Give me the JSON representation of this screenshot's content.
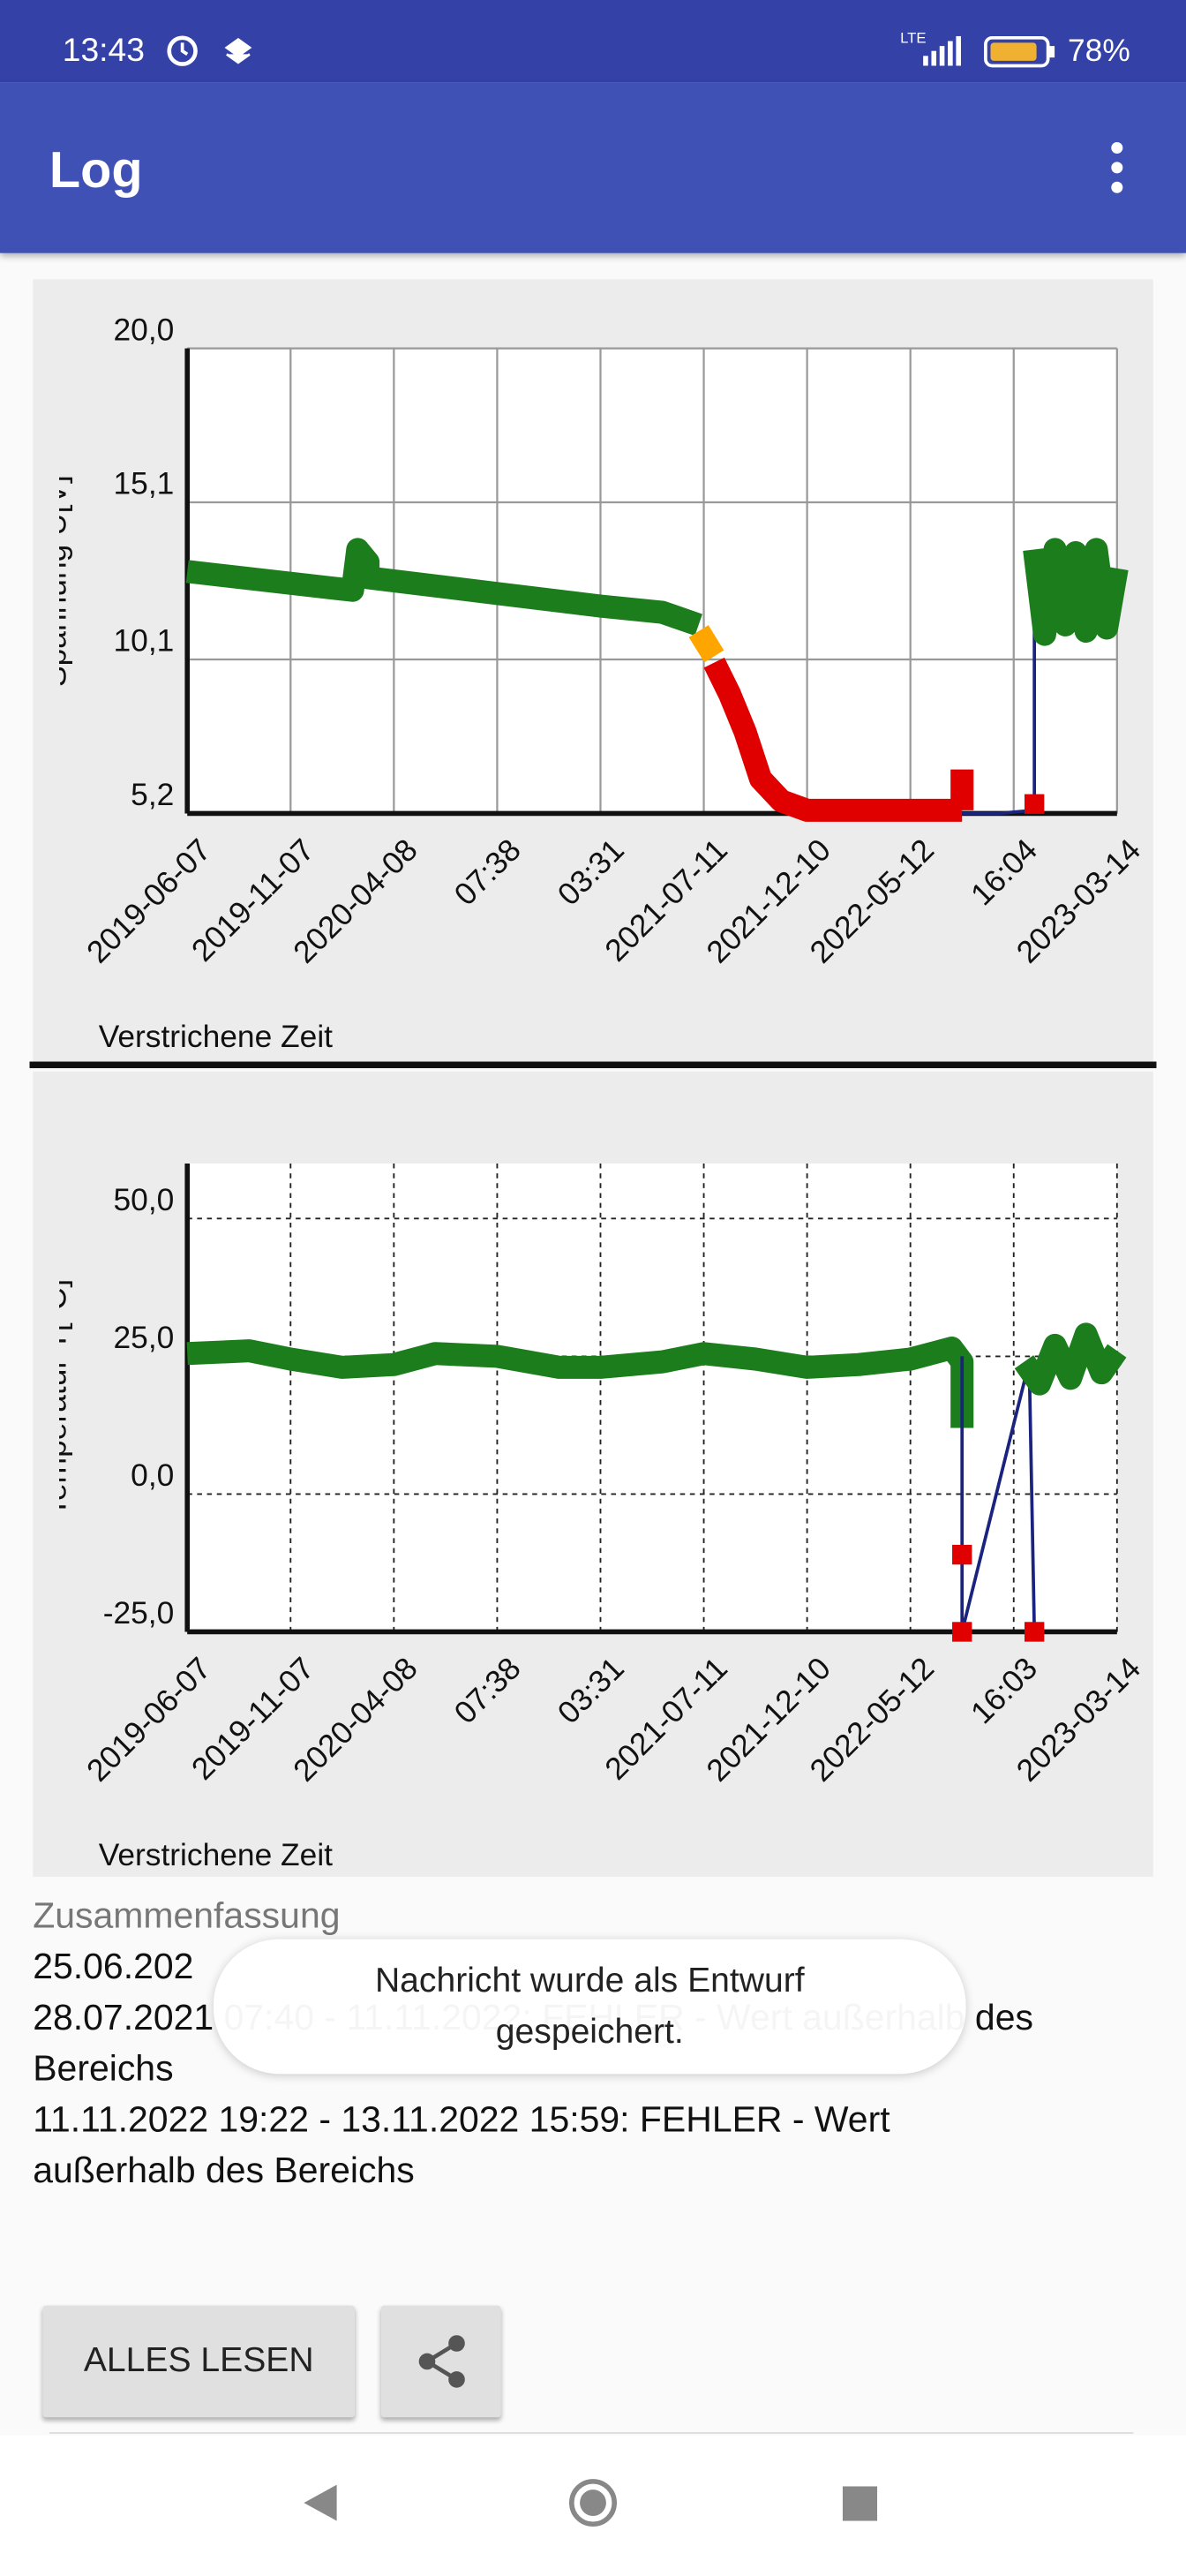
{
  "status_bar": {
    "time": "13:43",
    "network": "LTE",
    "battery": "78%"
  },
  "app_bar": {
    "title": "Log"
  },
  "chart_data": [
    {
      "type": "line",
      "y_label": "Spannung U[V]",
      "x_label": "Verstrichene Zeit",
      "grid": "solid",
      "xlim": [
        0,
        9
      ],
      "xticks": [
        {
          "value": 0,
          "label": "2019-06-07"
        },
        {
          "value": 1,
          "label": "2019-11-07"
        },
        {
          "value": 2,
          "label": "2020-04-08"
        },
        {
          "value": 3,
          "label": "07:38"
        },
        {
          "value": 4,
          "label": "03:31"
        },
        {
          "value": 5,
          "label": "2021-07-11"
        },
        {
          "value": 6,
          "label": "2021-12-10"
        },
        {
          "value": 7,
          "label": "2022-05-12"
        },
        {
          "value": 8,
          "label": "16:04"
        },
        {
          "value": 9,
          "label": "2023-03-14"
        }
      ],
      "ylim": [
        5.2,
        20.0
      ],
      "yticks": [
        {
          "value": 5.2,
          "label": "5,2"
        },
        {
          "value": 10.1,
          "label": "10,1"
        },
        {
          "value": 15.1,
          "label": "15,1"
        },
        {
          "value": 20.0,
          "label": "20,0"
        }
      ],
      "series": [
        {
          "color": "#1b7d1b",
          "mode": "line",
          "style": "thick",
          "x": [
            0,
            1.6,
            1.65,
            1.75,
            1.75,
            3.0,
            4.0,
            4.6,
            4.95
          ],
          "values": [
            12.9,
            12.3,
            13.6,
            13.2,
            12.7,
            12.2,
            11.8,
            11.6,
            11.2
          ]
        },
        {
          "color": "#ffa500",
          "mode": "line",
          "style": "thick",
          "x": [
            4.95,
            5.1
          ],
          "values": [
            11.0,
            10.2
          ]
        },
        {
          "color": "#e00000",
          "mode": "line",
          "style": "thick",
          "x": [
            5.1,
            5.25,
            5.4,
            5.55,
            5.75,
            6.0,
            7.5
          ],
          "values": [
            10.0,
            9.0,
            7.8,
            6.3,
            5.6,
            5.3,
            5.3
          ]
        },
        {
          "color": "#e00000",
          "mode": "line",
          "style": "thick",
          "x": [
            7.5,
            7.5
          ],
          "values": [
            5.3,
            6.6
          ]
        },
        {
          "color": "#1a237e",
          "mode": "line",
          "style": "thin",
          "x": [
            7.5,
            7.85,
            8.2,
            8.2
          ],
          "values": [
            5.2,
            5.2,
            5.3,
            13.5
          ]
        },
        {
          "color": "#e00000",
          "mode": "markers",
          "x": [
            8.2
          ],
          "values": [
            5.5
          ]
        },
        {
          "color": "#1b7d1b",
          "mode": "line",
          "style": "thick",
          "x": [
            8.2,
            8.3,
            8.4,
            8.5,
            8.6,
            8.7,
            8.8,
            8.9,
            9.0
          ],
          "values": [
            13.6,
            10.9,
            13.6,
            11.2,
            13.5,
            11.0,
            13.6,
            11.1,
            13.0
          ]
        }
      ]
    },
    {
      "type": "line",
      "y_label": "Temperatur T[°C]",
      "x_label": "Verstrichene Zeit",
      "grid": "dashed",
      "xlim": [
        0,
        9
      ],
      "xticks": [
        {
          "value": 0,
          "label": "2019-06-07"
        },
        {
          "value": 1,
          "label": "2019-11-07"
        },
        {
          "value": 2,
          "label": "2020-04-08"
        },
        {
          "value": 3,
          "label": "07:38"
        },
        {
          "value": 4,
          "label": "03:31"
        },
        {
          "value": 5,
          "label": "2021-07-11"
        },
        {
          "value": 6,
          "label": "2021-12-10"
        },
        {
          "value": 7,
          "label": "2022-05-12"
        },
        {
          "value": 8,
          "label": "16:03"
        },
        {
          "value": 9,
          "label": "2023-03-14"
        }
      ],
      "ylim": [
        -25,
        60
      ],
      "yticks": [
        {
          "value": -25,
          "label": "-25,0"
        },
        {
          "value": 0,
          "label": "0,0"
        },
        {
          "value": 25,
          "label": "25,0"
        },
        {
          "value": 50,
          "label": "50,0"
        }
      ],
      "series": [
        {
          "color": "#1b7d1b",
          "mode": "line",
          "style": "thick",
          "x": [
            0,
            0.6,
            1,
            1.5,
            2,
            2.4,
            3,
            3.6,
            4,
            4.6,
            5,
            5.5,
            6,
            6.5,
            7,
            7.4,
            7.5,
            7.5
          ],
          "values": [
            25.5,
            26,
            24.5,
            23,
            23.5,
            25.5,
            25,
            23,
            23,
            24,
            25.5,
            24.5,
            23,
            23.5,
            24.5,
            26.5,
            24,
            12
          ]
        },
        {
          "color": "#1a237e",
          "mode": "line",
          "style": "thin",
          "x": [
            7.5,
            7.5,
            8.15,
            8.2
          ],
          "values": [
            25,
            -25,
            24,
            -25
          ]
        },
        {
          "color": "#e00000",
          "mode": "markers",
          "x": [
            7.5,
            7.5,
            8.2
          ],
          "values": [
            -11,
            -25,
            -25
          ]
        },
        {
          "color": "#1b7d1b",
          "mode": "line",
          "style": "thick",
          "x": [
            8.1,
            8.25,
            8.4,
            8.55,
            8.7,
            8.85,
            9.0
          ],
          "values": [
            24,
            20,
            27,
            21,
            29,
            22,
            26
          ]
        }
      ]
    }
  ],
  "summary": {
    "heading": "Zusammenfassung",
    "lines": [
      "25.06.202",
      "28.07.2021 07:40 - 11.11.2022: FEHLER - Wert außerhalb des Bereichs",
      "11.11.2022 19:22 - 13.11.2022 15:59: FEHLER - Wert außerhalb des Bereichs"
    ]
  },
  "toast": "Nachricht wurde als Entwurf gespeichert.",
  "buttons": {
    "read_all": "ALLES LESEN"
  }
}
